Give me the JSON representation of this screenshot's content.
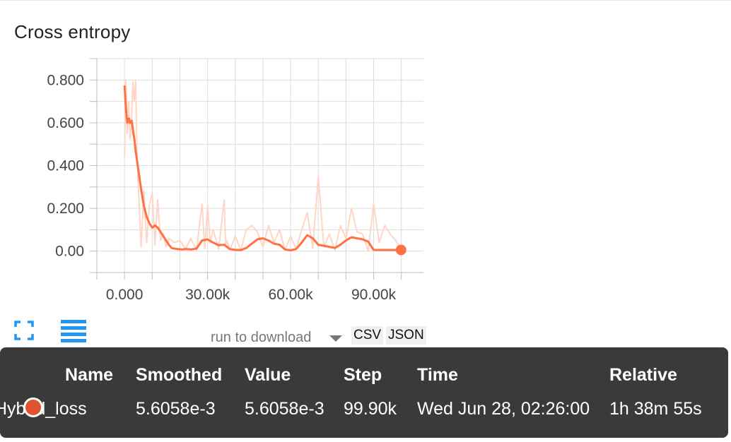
{
  "title": "Cross entropy",
  "colors": {
    "series": "#ff7043",
    "raw_series": "#ffd5c6",
    "tooltip_bg": "#3a3a3a"
  },
  "chart_data": {
    "type": "line",
    "title": "Cross entropy",
    "xlabel": "",
    "ylabel": "",
    "xlim": [
      -10000,
      108000
    ],
    "ylim": [
      -0.1,
      0.9
    ],
    "grid": true,
    "x_ticks": [
      "0.000",
      "30.00k",
      "60.00k",
      "90.00k"
    ],
    "x_tick_values": [
      0,
      30000,
      60000,
      90000
    ],
    "y_ticks": [
      "0.800",
      "0.600",
      "0.400",
      "0.200",
      "0.00"
    ],
    "y_tick_values": [
      0.8,
      0.6,
      0.4,
      0.2,
      0.0
    ],
    "series": [
      {
        "name": "Hybrid_loss",
        "kind": "smoothed",
        "x": [
          0,
          600,
          1000,
          1600,
          2000,
          2600,
          3000,
          3600,
          4000,
          5000,
          6000,
          7000,
          8000,
          9000,
          10000,
          11000,
          12000,
          13000,
          14000,
          15000,
          16000,
          17000,
          18000,
          19000,
          20000,
          21000,
          22000,
          24000,
          26000,
          28000,
          30000,
          32000,
          34000,
          36000,
          38000,
          40000,
          42000,
          44000,
          46000,
          48000,
          50000,
          52000,
          54000,
          56000,
          58000,
          60000,
          62000,
          64000,
          66000,
          68000,
          70000,
          72000,
          74000,
          76000,
          78000,
          80000,
          82000,
          84000,
          86000,
          88000,
          90000,
          92000,
          94000,
          96000,
          98000,
          99900
        ],
        "y": [
          0.77,
          0.65,
          0.6,
          0.62,
          0.6,
          0.61,
          0.57,
          0.52,
          0.47,
          0.38,
          0.29,
          0.21,
          0.16,
          0.13,
          0.11,
          0.12,
          0.11,
          0.09,
          0.07,
          0.05,
          0.03,
          0.015,
          0.012,
          0.01,
          0.009,
          0.008,
          0.01,
          0.008,
          0.012,
          0.05,
          0.055,
          0.04,
          0.028,
          0.03,
          0.01,
          0.006,
          0.005,
          0.015,
          0.035,
          0.055,
          0.06,
          0.05,
          0.035,
          0.03,
          0.008,
          0.004,
          0.01,
          0.04,
          0.075,
          0.06,
          0.03,
          0.025,
          0.02,
          0.015,
          0.03,
          0.05,
          0.065,
          0.06,
          0.055,
          0.045,
          0.0056,
          0.0056,
          0.0056,
          0.0056,
          0.0056,
          0.0056
        ]
      },
      {
        "name": "Hybrid_loss",
        "kind": "raw",
        "x": [
          0,
          500,
          1000,
          1500,
          2000,
          2500,
          3000,
          3500,
          4000,
          4500,
          5000,
          6000,
          7000,
          8000,
          9000,
          10000,
          11000,
          12000,
          13000,
          14000,
          15000,
          16000,
          18000,
          20000,
          22000,
          24000,
          26000,
          28000,
          29000,
          30000,
          31000,
          32000,
          34000,
          36000,
          36500,
          37000,
          38000,
          40000,
          42000,
          44000,
          46000,
          48000,
          50000,
          52000,
          54000,
          56000,
          58000,
          60000,
          62000,
          64000,
          66000,
          68000,
          70000,
          72000,
          74000,
          76000,
          78000,
          80000,
          82000,
          84000,
          86000,
          88000,
          90000,
          92000,
          94000,
          96000,
          98000,
          99900
        ],
        "y": [
          0.45,
          0.8,
          0.55,
          0.7,
          0.52,
          0.6,
          0.79,
          0.7,
          0.8,
          0.45,
          0.3,
          0.02,
          0.28,
          0.04,
          0.22,
          0.27,
          0.03,
          0.24,
          0.05,
          0.08,
          0.02,
          0.06,
          0.04,
          0.05,
          0.01,
          0.06,
          0.005,
          0.22,
          0.01,
          0.21,
          0.04,
          0.1,
          0.01,
          0.24,
          0.03,
          0.05,
          0.005,
          0.07,
          0.005,
          0.1,
          0.12,
          0.09,
          0.02,
          0.12,
          0.04,
          0.1,
          0.005,
          0.07,
          0.01,
          0.1,
          0.18,
          0.015,
          0.35,
          0.02,
          0.08,
          0.005,
          0.12,
          0.06,
          0.2,
          0.09,
          0.08,
          0.0,
          0.22,
          0.04,
          0.12,
          0.08,
          0.05,
          0.0056
        ]
      }
    ],
    "highlight_point": {
      "x": 99900,
      "y": 0.0056
    }
  },
  "controls": {
    "run_select_label": "run to download",
    "csv_label": "CSV",
    "json_label": "JSON"
  },
  "tooltip": {
    "headers": {
      "name": "Name",
      "smoothed": "Smoothed",
      "value": "Value",
      "step": "Step",
      "time": "Time",
      "relative": "Relative"
    },
    "row": {
      "name": "Hybrid_loss",
      "smoothed": "5.6058e-3",
      "value": "5.6058e-3",
      "step": "99.90k",
      "time": "Wed Jun 28, 02:26:00",
      "relative": "1h 38m 55s"
    }
  }
}
